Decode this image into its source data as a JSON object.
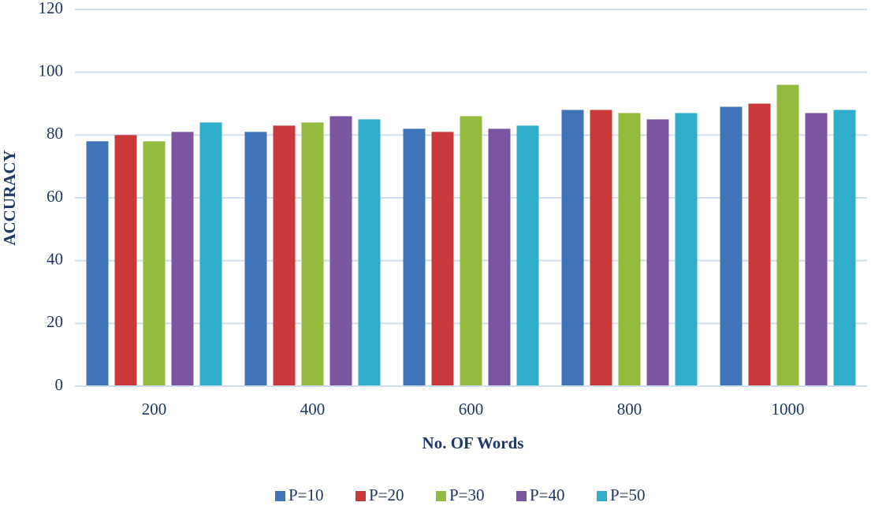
{
  "chart_data": {
    "type": "bar",
    "x_label": "No. OF Words",
    "y_label": "ACCURACY",
    "categories": [
      "200",
      "400",
      "600",
      "800",
      "1000"
    ],
    "series": [
      {
        "name": "P=10",
        "color": "#3f74b8",
        "values": [
          78,
          81,
          82,
          88,
          89
        ]
      },
      {
        "name": "P=20",
        "color": "#c9393a",
        "values": [
          80,
          83,
          81,
          88,
          90
        ]
      },
      {
        "name": "P=30",
        "color": "#94bb3e",
        "values": [
          78,
          84,
          86,
          87,
          96
        ]
      },
      {
        "name": "P=40",
        "color": "#7a55a0",
        "values": [
          81,
          86,
          82,
          85,
          87
        ]
      },
      {
        "name": "P=50",
        "color": "#2eaecb",
        "values": [
          84,
          85,
          83,
          87,
          88
        ]
      }
    ],
    "ylim": [
      0,
      120
    ],
    "yticks": [
      0,
      20,
      40,
      60,
      80,
      100,
      120
    ],
    "grid": true,
    "legend": "bottom"
  }
}
